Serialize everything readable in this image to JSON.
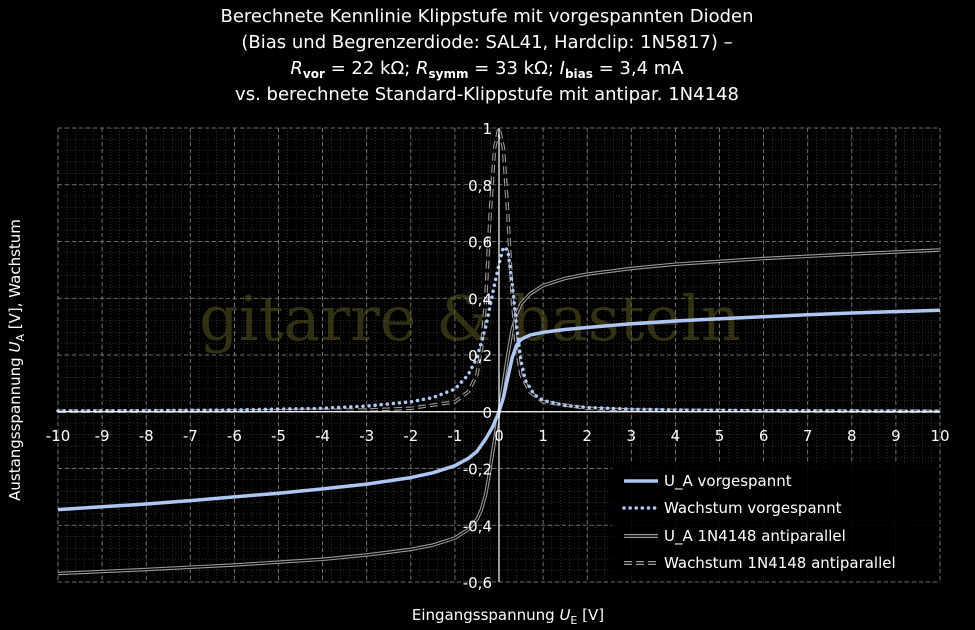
{
  "chart_data": {
    "type": "line",
    "title_lines": [
      "Berechnete Kennlinie Klippstufe mit vorgespannten Dioden",
      "(Bias und Begrenzerdiode: SAL41, Hardclip: 1N5817) –"
    ],
    "title_line3": {
      "r_vor_sym": "R",
      "r_vor_sub": "vor",
      "r_vor_val": " = 22 kΩ; ",
      "r_symm_sym": "R",
      "r_symm_sub": "symm",
      "r_symm_val": " = 33 kΩ; ",
      "i_bias_sym": "I",
      "i_bias_sub": "bias",
      "i_bias_val": " = 3,4 mA"
    },
    "title_line4": "vs. berechnete Standard-Klippstufe mit antipar. 1N4148",
    "xlabel": {
      "text": "Eingangsspannung ",
      "sym": "U",
      "sub": "E",
      "unit": " [V]"
    },
    "ylabel": {
      "text": "Austangsspannung ",
      "sym": "U",
      "sub": "A",
      "unit": " [V], Wachstum"
    },
    "xlim": [
      -10,
      10
    ],
    "ylim": [
      -0.6,
      1.0
    ],
    "x_ticks": [
      "-10",
      "-9",
      "-8",
      "-7",
      "-6",
      "-5",
      "-4",
      "-3",
      "-2",
      "-1",
      "0",
      "1",
      "2",
      "3",
      "4",
      "5",
      "6",
      "7",
      "8",
      "9",
      "10"
    ],
    "y_ticks": [
      {
        "value": -0.6,
        "label": "-0,6"
      },
      {
        "value": -0.4,
        "label": "-0,4"
      },
      {
        "value": -0.2,
        "label": "-0,2"
      },
      {
        "value": 0,
        "label": "0"
      },
      {
        "value": 0.2,
        "label": "0,2"
      },
      {
        "value": 0.4,
        "label": "0,4"
      },
      {
        "value": 0.6,
        "label": "0,6"
      },
      {
        "value": 0.8,
        "label": "0,8"
      },
      {
        "value": 1.0,
        "label": "1"
      }
    ],
    "grid": "on",
    "legend_position": "bottom-right",
    "watermark": "gitarre & basteln",
    "colors": {
      "u_a_vorgespannt": "#aec6f2",
      "wachstum_vorgespannt": "#aec6f2",
      "u_a_1n4148": "#9a9a9a",
      "wachstum_1n4148": "#9a9a9a",
      "grid": "#5a5a5a",
      "watermark": "#57551e"
    },
    "series": [
      {
        "name": "U_A vorgespannt",
        "style": "solid",
        "x": [
          -10,
          -9,
          -8,
          -7,
          -6,
          -5,
          -4,
          -3,
          -2,
          -1.5,
          -1,
          -0.7,
          -0.5,
          -0.3,
          -0.15,
          0,
          0.1,
          0.2,
          0.3,
          0.4,
          0.5,
          0.7,
          1,
          1.5,
          2,
          3,
          4,
          5,
          6,
          7,
          8,
          9,
          10
        ],
        "y": [
          -0.345,
          -0.335,
          -0.325,
          -0.313,
          -0.3,
          -0.287,
          -0.272,
          -0.255,
          -0.232,
          -0.215,
          -0.19,
          -0.165,
          -0.14,
          -0.095,
          -0.055,
          0,
          0.05,
          0.12,
          0.19,
          0.235,
          0.255,
          0.27,
          0.28,
          0.29,
          0.297,
          0.31,
          0.32,
          0.328,
          0.335,
          0.342,
          0.348,
          0.353,
          0.358
        ]
      },
      {
        "name": "Wachstum vorgespannt",
        "style": "dotted",
        "x": [
          -10,
          -8,
          -6,
          -4,
          -3,
          -2,
          -1.5,
          -1,
          -0.7,
          -0.5,
          -0.3,
          -0.1,
          0,
          0.1,
          0.2,
          0.3,
          0.4,
          0.5,
          0.6,
          0.8,
          1,
          1.5,
          2,
          3,
          4,
          6,
          8,
          10
        ],
        "y": [
          0.003,
          0.004,
          0.006,
          0.012,
          0.02,
          0.035,
          0.05,
          0.08,
          0.13,
          0.19,
          0.3,
          0.45,
          0.52,
          0.58,
          0.57,
          0.45,
          0.3,
          0.18,
          0.11,
          0.06,
          0.04,
          0.022,
          0.015,
          0.009,
          0.006,
          0.004,
          0.003,
          0.002
        ]
      },
      {
        "name": "U_A 1N4148 antiparallel",
        "style": "double",
        "x": [
          -10,
          -9,
          -8,
          -7,
          -6,
          -5,
          -4,
          -3,
          -2,
          -1.5,
          -1,
          -0.7,
          -0.5,
          -0.4,
          -0.3,
          -0.2,
          -0.1,
          0,
          0.1,
          0.2,
          0.3,
          0.4,
          0.5,
          0.7,
          1,
          1.5,
          2,
          3,
          4,
          5,
          6,
          7,
          8,
          9,
          10
        ],
        "y": [
          -0.57,
          -0.563,
          -0.556,
          -0.548,
          -0.54,
          -0.53,
          -0.52,
          -0.505,
          -0.485,
          -0.47,
          -0.445,
          -0.415,
          -0.38,
          -0.345,
          -0.29,
          -0.2,
          -0.1,
          0,
          0.1,
          0.2,
          0.29,
          0.345,
          0.38,
          0.415,
          0.445,
          0.47,
          0.485,
          0.505,
          0.52,
          0.53,
          0.54,
          0.548,
          0.556,
          0.563,
          0.57
        ]
      },
      {
        "name": "Wachstum 1N4148 antiparallel",
        "style": "dashed-double",
        "x": [
          -10,
          -6,
          -3,
          -2,
          -1,
          -0.7,
          -0.5,
          -0.4,
          -0.3,
          -0.2,
          -0.1,
          0,
          0.1,
          0.2,
          0.3,
          0.4,
          0.5,
          0.7,
          1,
          2,
          3,
          6,
          10
        ],
        "y": [
          0.002,
          0.003,
          0.006,
          0.012,
          0.035,
          0.07,
          0.13,
          0.22,
          0.4,
          0.7,
          0.93,
          1.0,
          0.93,
          0.7,
          0.4,
          0.22,
          0.13,
          0.07,
          0.035,
          0.012,
          0.006,
          0.003,
          0.002
        ]
      }
    ]
  }
}
